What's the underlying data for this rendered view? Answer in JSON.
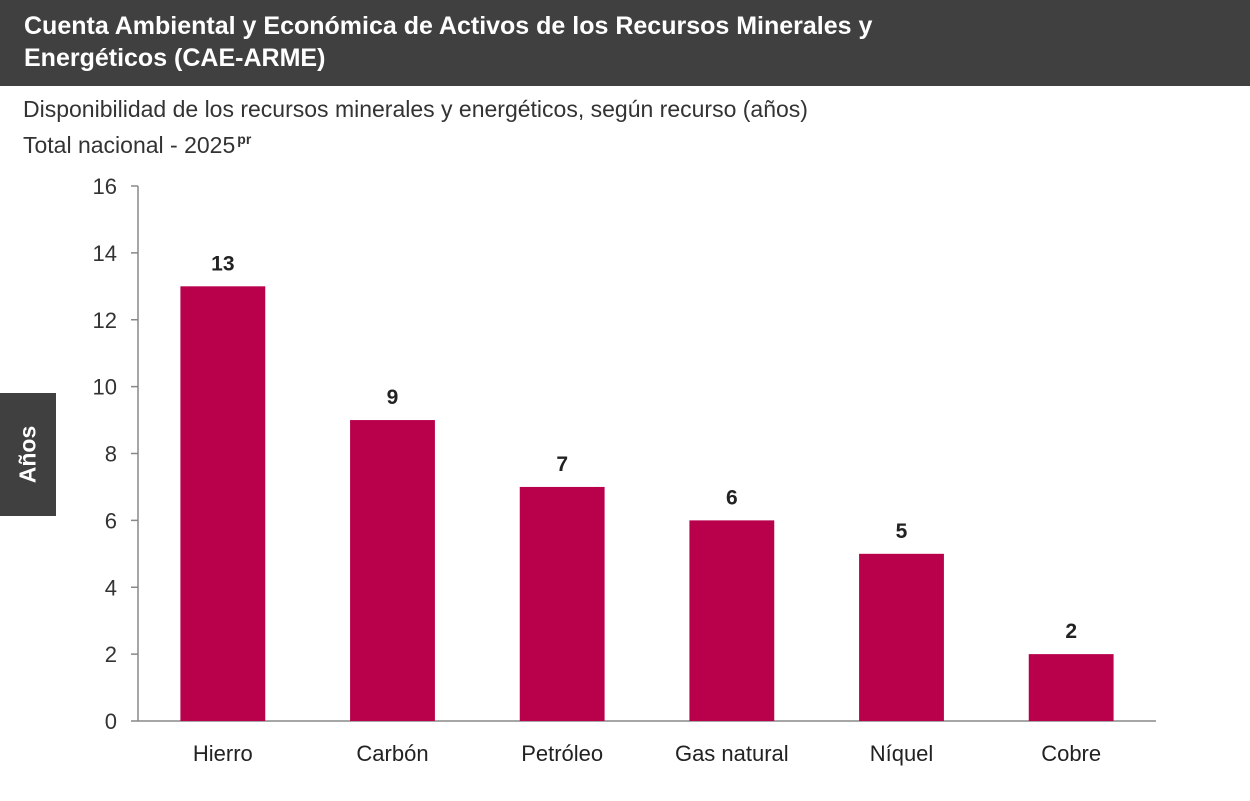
{
  "header": {
    "title": "Cuenta Ambiental y Económica de Activos de los Recursos Minerales y Energéticos (CAE-ARME)"
  },
  "subtitle": {
    "line1": "Disponibilidad de los recursos minerales y energéticos, según recurso (años)",
    "line2": "Total nacional - 2025",
    "line2_sup": "pr"
  },
  "colors": {
    "bar": "#B8004B",
    "header_bg": "#404040",
    "axis": "#888888"
  },
  "chart_data": {
    "type": "bar",
    "title": "",
    "xlabel": "",
    "ylabel": "Años",
    "categories": [
      "Hierro",
      "Carbón",
      "Petróleo",
      "Gas natural",
      "Níquel",
      "Cobre"
    ],
    "values": [
      13,
      9,
      7,
      6,
      5,
      2
    ],
    "data_labels": [
      "13",
      "9",
      "7",
      "6",
      "5",
      "2"
    ],
    "ylim": [
      0,
      16
    ],
    "yticks": [
      "0",
      "2",
      "4",
      "6",
      "8",
      "10",
      "12",
      "14",
      "16"
    ],
    "grid": false,
    "legend": "none"
  }
}
